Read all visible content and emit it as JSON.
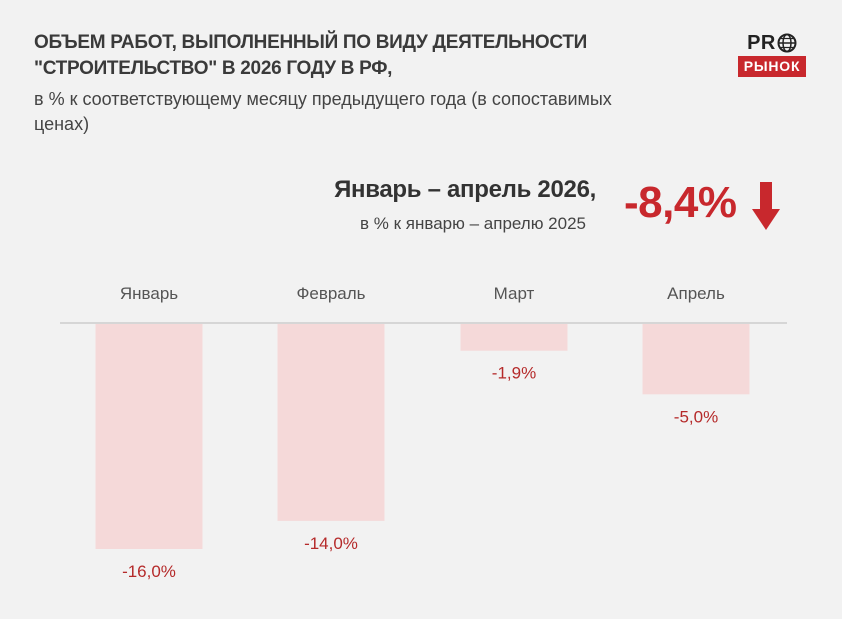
{
  "title": "ОБЪЕМ РАБОТ, ВЫПОЛНЕННЫЙ ПО ВИДУ ДЕЯТЕЛЬНОСТИ \"СТРОИТЕЛЬСТВО\" В 2026 ГОДУ В РФ,",
  "subtitle": "в % к соответствующему месяцу предыдущего года (в сопоставимых ценах)",
  "logo": {
    "top": "PR",
    "bottom": "РЫНОК",
    "icon": "globe-icon"
  },
  "summary": {
    "period": "Январь – апрель 2026,",
    "description": "в % к январю – апрелю 2025",
    "value": "-8,4%",
    "icon": "down-arrow-icon"
  },
  "colors": {
    "bar": "#f5d9d9",
    "label": "#b52a2a",
    "accent": "#c8282d",
    "axis": "#cccccc"
  },
  "chart_data": {
    "type": "bar",
    "categories": [
      "Январь",
      "Февраль",
      "Март",
      "Апрель"
    ],
    "values": [
      -16.0,
      -14.0,
      -1.9,
      -5.0
    ],
    "value_labels": [
      "-16,0%",
      "-14,0%",
      "-1,9%",
      "-5,0%"
    ],
    "ylim": [
      -16,
      0
    ],
    "grid": false,
    "legend": "none"
  }
}
